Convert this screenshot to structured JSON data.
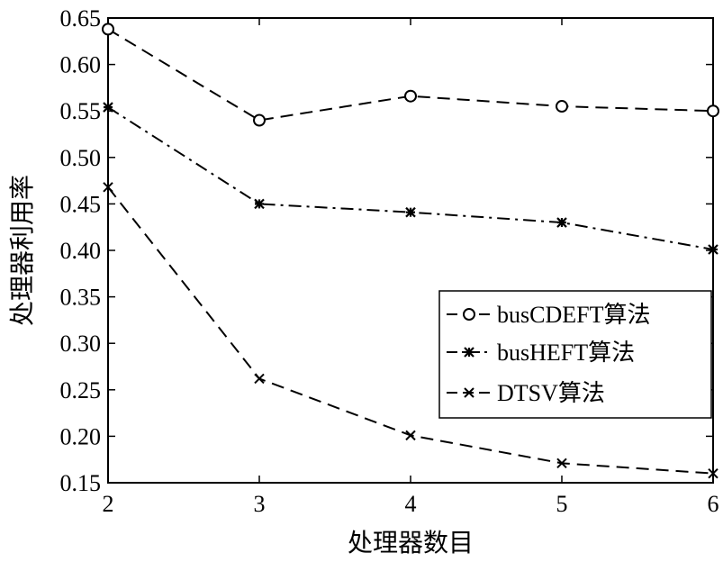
{
  "chart_data": {
    "type": "line",
    "xlabel": "处理器数目",
    "ylabel": "处理器利用率",
    "x": [
      2,
      3,
      4,
      5,
      6
    ],
    "xlim": [
      2,
      6
    ],
    "ylim": [
      0.15,
      0.65
    ],
    "xticks": [
      "2",
      "3",
      "4",
      "5",
      "6"
    ],
    "yticks": [
      "0.15",
      "0.20",
      "0.25",
      "0.30",
      "0.35",
      "0.40",
      "0.45",
      "0.50",
      "0.55",
      "0.60",
      "0.65"
    ],
    "grid": false,
    "legend_position": "right-middle",
    "series": [
      {
        "name": "busCDEFT算法",
        "values": [
          0.638,
          0.54,
          0.566,
          0.555,
          0.55
        ],
        "marker": "circle",
        "line_style": "dashed",
        "color": "#000000"
      },
      {
        "name": "busHEFT算法",
        "values": [
          0.554,
          0.45,
          0.441,
          0.43,
          0.401
        ],
        "marker": "star",
        "line_style": "dash-dot",
        "color": "#000000"
      },
      {
        "name": "DTSV算法",
        "values": [
          0.468,
          0.262,
          0.201,
          0.171,
          0.16
        ],
        "marker": "x",
        "line_style": "dashed",
        "color": "#000000"
      }
    ]
  }
}
